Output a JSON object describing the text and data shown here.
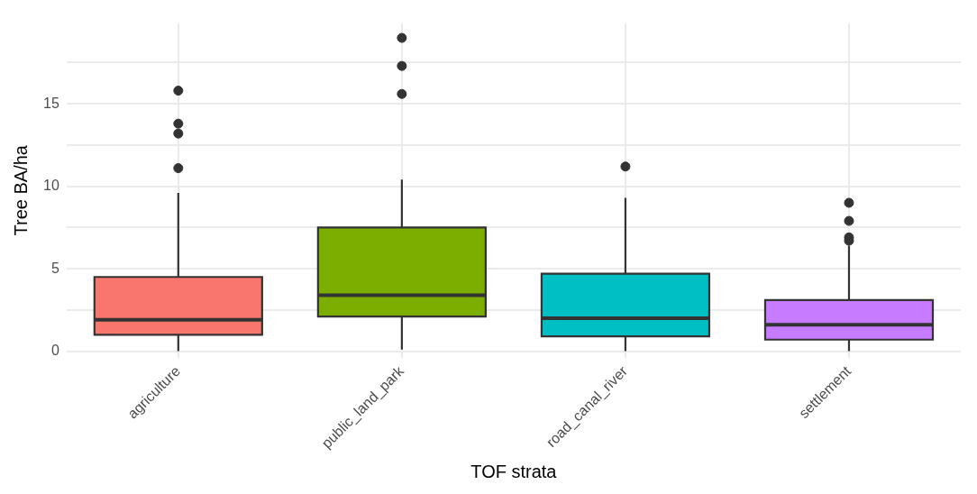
{
  "chart_data": {
    "type": "box",
    "xlabel": "TOF strata",
    "ylabel": "Tree BA/ha",
    "categories": [
      "agriculture",
      "public_land_park",
      "road_canal_river",
      "settlement"
    ],
    "colors": [
      "#f8766d",
      "#7cae00",
      "#00bfc4",
      "#c77cff"
    ],
    "boxes": [
      {
        "low": 0,
        "q1": 1.0,
        "median": 1.9,
        "q3": 4.5,
        "high": 9.6,
        "outliers": [
          11.1,
          13.2,
          13.8,
          15.8
        ]
      },
      {
        "low": 0.1,
        "q1": 2.1,
        "median": 3.4,
        "q3": 7.5,
        "high": 10.4,
        "outliers": [
          15.6,
          17.3,
          19.0
        ]
      },
      {
        "low": 0,
        "q1": 0.9,
        "median": 2.0,
        "q3": 4.7,
        "high": 9.3,
        "outliers": [
          11.2
        ]
      },
      {
        "low": 0,
        "q1": 0.7,
        "median": 1.6,
        "q3": 3.1,
        "high": 6.4,
        "outliers": [
          6.7,
          6.9,
          7.9,
          9.0
        ]
      }
    ],
    "ylim": [
      -0.4,
      19.9
    ],
    "yticks": [
      0,
      {
        "value": 2.5,
        "label": null
      },
      5,
      {
        "value": 7.5,
        "label": null
      },
      10,
      {
        "value": 12.5,
        "label": null
      },
      15,
      {
        "value": 17.5,
        "label": null
      }
    ],
    "grid": true,
    "legend": false
  }
}
